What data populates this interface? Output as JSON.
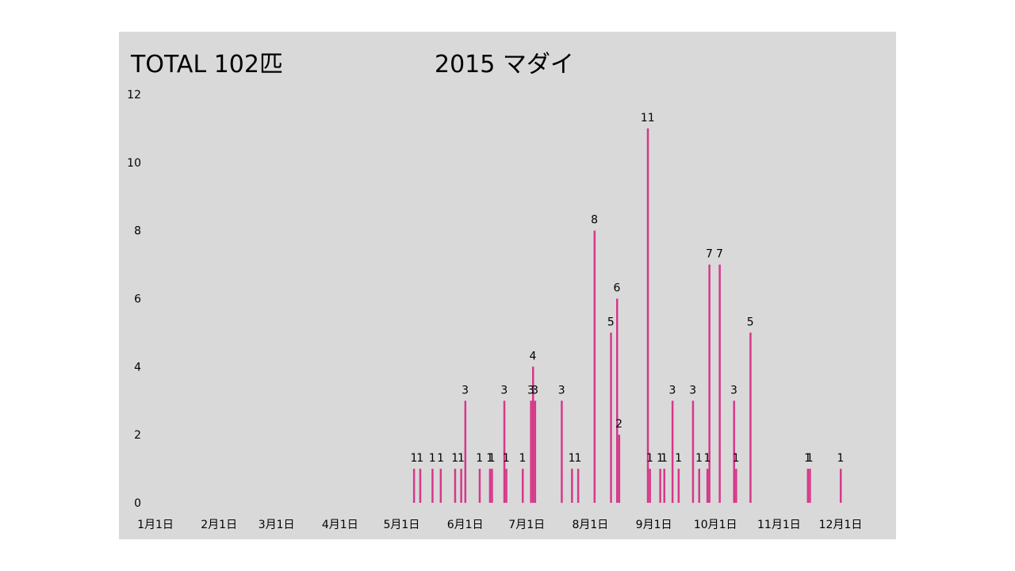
{
  "header": {
    "total": "TOTAL 102匹",
    "title": "2015 マダイ"
  },
  "colors": {
    "background": "#d9d9d9",
    "bar": "#d6388a"
  },
  "chart_data": {
    "type": "bar",
    "title": "2015 マダイ",
    "xlabel": "",
    "ylabel": "",
    "ylim": [
      0,
      12
    ],
    "yticks": [
      0,
      2,
      4,
      6,
      8,
      10,
      12
    ],
    "xticks": [
      "1月1日",
      "2月1日",
      "3月1日",
      "4月1日",
      "5月1日",
      "6月1日",
      "7月1日",
      "8月1日",
      "9月1日",
      "10月1日",
      "11月1日",
      "12月1日"
    ],
    "grid": false,
    "legend": "none",
    "x": [
      "5月7日",
      "5月10日",
      "5月16日",
      "5月20日",
      "5月27日",
      "5月30日",
      "6月1日",
      "6月8日",
      "6月13日",
      "6月14日",
      "6月20日",
      "6月21日",
      "6月29日",
      "7月3日",
      "7月4日",
      "7月5日",
      "7月18日",
      "7月23日",
      "7月26日",
      "8月3日",
      "8月11日",
      "8月14日",
      "8月15日",
      "8月29日",
      "8月30日",
      "9月4日",
      "9月6日",
      "9m10日",
      "9月13日",
      "9月20日",
      "9月23日",
      "9月27日",
      "9月28日",
      "10月3日",
      "10月10日",
      "10月11日",
      "10月18日",
      "11月15日",
      "11月16日",
      "12月1日"
    ],
    "values": [
      1,
      1,
      1,
      1,
      1,
      1,
      3,
      1,
      1,
      1,
      3,
      1,
      1,
      3,
      4,
      3,
      3,
      1,
      1,
      8,
      5,
      6,
      2,
      11,
      1,
      1,
      1,
      3,
      1,
      3,
      1,
      1,
      7,
      7,
      3,
      1,
      5,
      1,
      1,
      1
    ]
  }
}
